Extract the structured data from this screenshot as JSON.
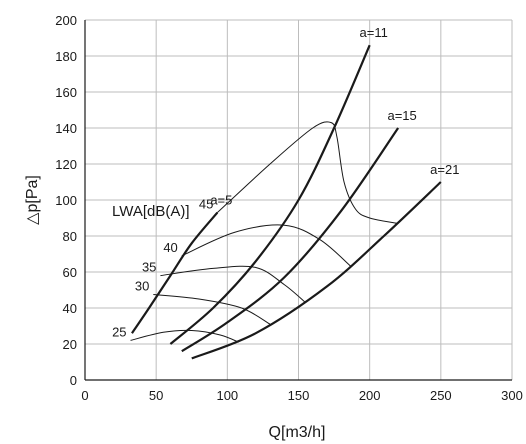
{
  "chart_data": {
    "type": "line",
    "xlabel": "Q[m3/h]",
    "ylabel": "△p[Pa]",
    "xlim": [
      0,
      300
    ],
    "ylim": [
      0,
      200
    ],
    "x_ticks": [
      0,
      50,
      100,
      150,
      200,
      250,
      300
    ],
    "y_ticks": [
      0,
      20,
      40,
      60,
      80,
      100,
      120,
      140,
      160,
      180,
      200
    ],
    "grid": true,
    "annotation": "LWA[dB(A)]",
    "setting_curves": [
      {
        "name": "a=5",
        "label": "a=5",
        "x": [
          33,
          45,
          60,
          75,
          93
        ],
        "y": [
          26,
          40,
          58,
          76,
          93
        ]
      },
      {
        "name": "a=11",
        "label": "a=11",
        "x": [
          60,
          90,
          120,
          150,
          175,
          200
        ],
        "y": [
          20,
          40,
          66,
          100,
          140,
          186
        ]
      },
      {
        "name": "a=15",
        "label": "a=15",
        "x": [
          68,
          100,
          140,
          180,
          220
        ],
        "y": [
          16,
          32,
          57,
          94,
          140
        ]
      },
      {
        "name": "a=21",
        "label": "a=21",
        "x": [
          75,
          120,
          170,
          210,
          250
        ],
        "y": [
          12,
          26,
          52,
          80,
          110
        ]
      }
    ],
    "sound_curves": [
      {
        "name": "25",
        "label": "25",
        "x": [
          32,
          55,
          75,
          95,
          108
        ],
        "y": [
          22,
          26.5,
          27.5,
          25,
          21
        ]
      },
      {
        "name": "30",
        "label": "30",
        "x": [
          48,
          80,
          110,
          130
        ],
        "y": [
          47.5,
          45,
          40,
          31
        ]
      },
      {
        "name": "35",
        "label": "35",
        "x": [
          53,
          90,
          120,
          140,
          155
        ],
        "y": [
          58,
          62,
          62.5,
          53,
          43
        ]
      },
      {
        "name": "40",
        "label": "40",
        "x": [
          68,
          105,
          140,
          165,
          187
        ],
        "y": [
          69,
          82,
          86,
          78,
          63
        ]
      },
      {
        "name": "45",
        "label": "45",
        "x": [
          93,
          130,
          160,
          173,
          177,
          182,
          190,
          200,
          220
        ],
        "y": [
          93,
          120,
          140,
          143,
          135,
          110,
          95,
          90,
          87
        ]
      }
    ]
  }
}
